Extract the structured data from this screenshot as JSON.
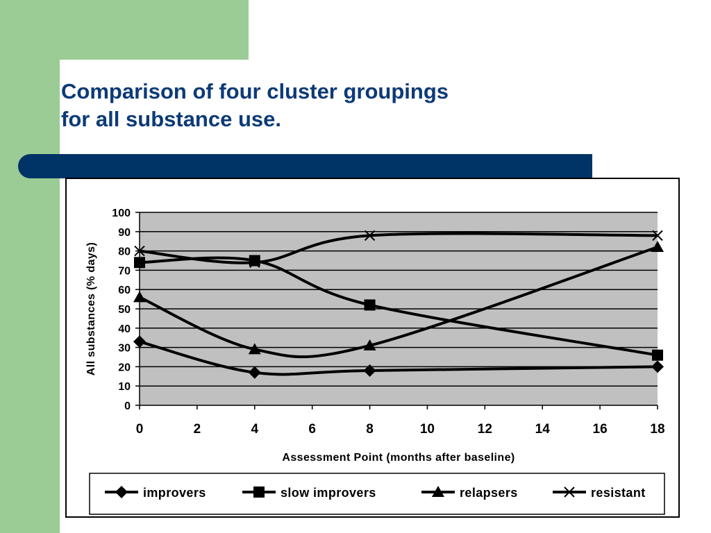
{
  "slide": {
    "title_line1": "Comparison of four cluster groupings",
    "title_line2": "for all substance use."
  },
  "colors": {
    "green": "#9bcc95",
    "navy": "#003366",
    "title": "#0c3a77",
    "plot_bg": "#c0c0c0"
  },
  "chart_data": {
    "type": "line",
    "title": "",
    "xlabel": "Assessment Point (months after baseline)",
    "ylabel": "All substances (% days)",
    "xlim": [
      0,
      18
    ],
    "ylim": [
      0,
      100
    ],
    "xticks": [
      0,
      2,
      4,
      6,
      8,
      10,
      12,
      14,
      16,
      18
    ],
    "yticks": [
      0,
      10,
      20,
      30,
      40,
      50,
      60,
      70,
      80,
      90,
      100
    ],
    "grid": "horizontal",
    "legend": "bottom",
    "x": [
      0,
      4,
      8,
      18
    ],
    "series": [
      {
        "name": "improvers",
        "marker": "diamond",
        "values": [
          33,
          17,
          18,
          20
        ]
      },
      {
        "name": "slow improvers",
        "marker": "square",
        "values": [
          74,
          75,
          52,
          26
        ]
      },
      {
        "name": "relapsers",
        "marker": "triangle",
        "values": [
          56,
          29,
          31,
          82
        ]
      },
      {
        "name": "resistant",
        "marker": "x",
        "values": [
          80,
          74,
          88,
          88
        ]
      }
    ]
  }
}
